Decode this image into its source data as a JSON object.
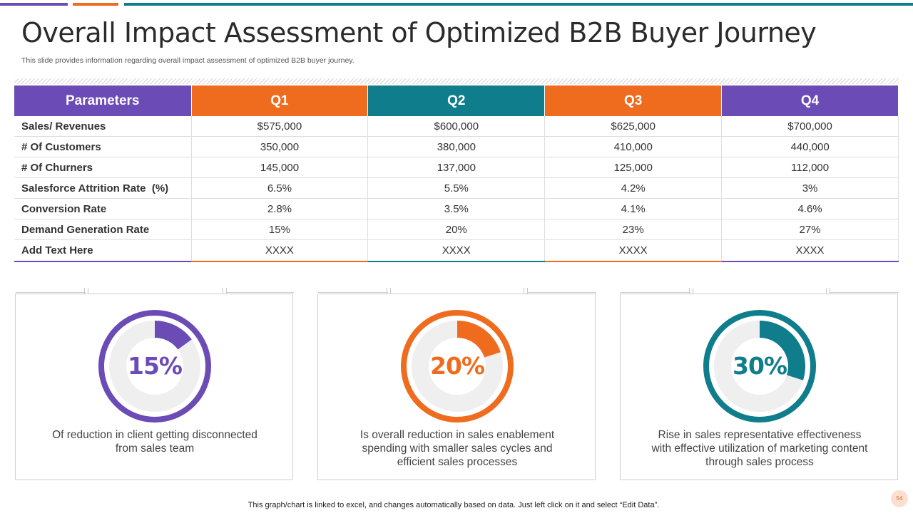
{
  "colors": {
    "purple": "#6b4bb5",
    "orange": "#ef6c1f",
    "teal": "#0f7d8c",
    "ring_bg": "#efefef"
  },
  "header": {
    "title": "Overall Impact Assessment of Optimized B2B Buyer Journey",
    "subtitle": "This slide provides information regarding overall impact assessment of optimized B2B buyer journey."
  },
  "table": {
    "headers": [
      "Parameters",
      "Q1",
      "Q2",
      "Q3",
      "Q4"
    ],
    "rows": [
      [
        "Sales/ Revenues",
        "$575,000",
        "$600,000",
        "$625,000",
        "$700,000"
      ],
      [
        "# Of Customers",
        "350,000",
        "380,000",
        "410,000",
        "440,000"
      ],
      [
        "# Of Churners",
        "145,000",
        "137,000",
        "125,000",
        "112,000"
      ],
      [
        "Salesforce Attrition Rate  (%)",
        "6.5%",
        "5.5%",
        "4.2%",
        "3%"
      ],
      [
        "Conversion Rate",
        "2.8%",
        "3.5%",
        "4.1%",
        "4.6%"
      ],
      [
        "Demand Generation Rate",
        "15%",
        "20%",
        "23%",
        "27%"
      ],
      [
        "Add Text Here",
        "XXXX",
        "XXXX",
        "XXXX",
        "XXXX"
      ]
    ]
  },
  "cards": [
    {
      "percent_label": "15%",
      "percent_value": 15,
      "color": "#6b4bb5",
      "description": "Of reduction in client getting disconnected from sales team"
    },
    {
      "percent_label": "20%",
      "percent_value": 20,
      "color": "#ef6c1f",
      "description": "Is overall reduction in sales enablement spending with smaller sales cycles and efficient sales processes"
    },
    {
      "percent_label": "30%",
      "percent_value": 30,
      "color": "#0f7d8c",
      "description": "Rise in sales representative effectiveness with effective utilization of marketing content through sales process"
    }
  ],
  "footer": {
    "note": "This graph/chart is linked to excel, and changes automatically based on data. Just left click on it and select “Edit Data”.",
    "page_number": "54"
  }
}
